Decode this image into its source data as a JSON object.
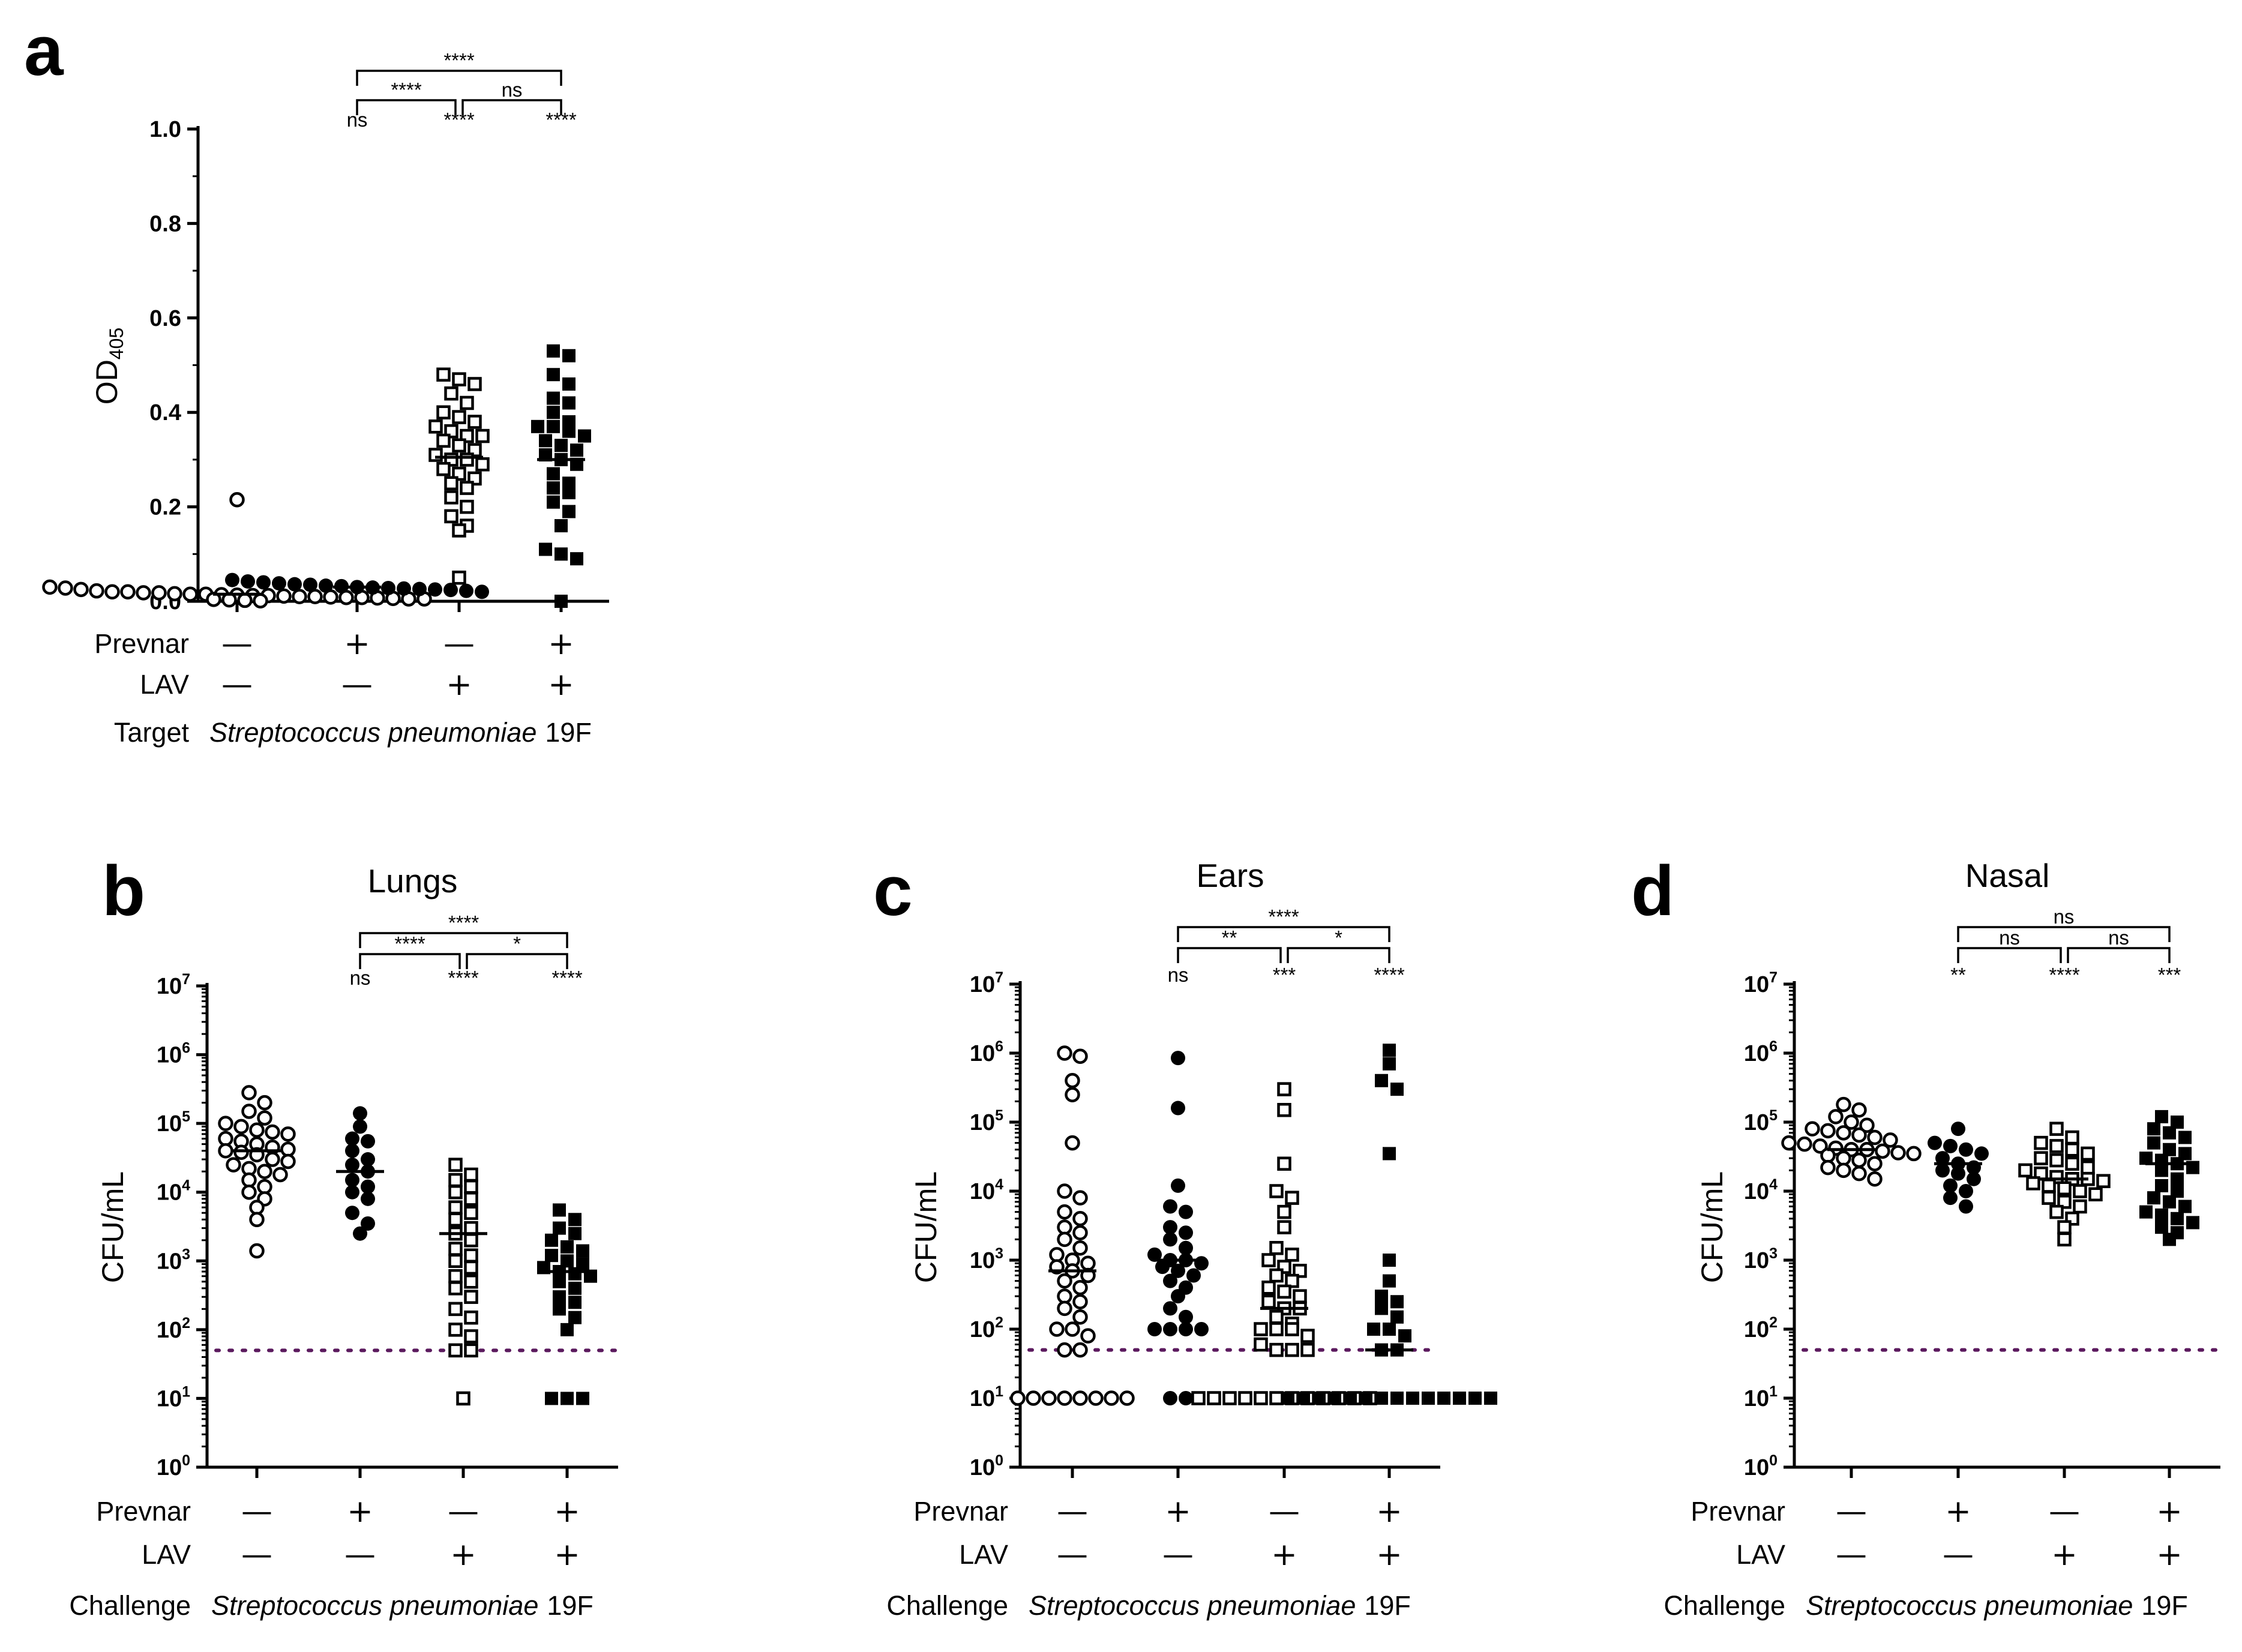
{
  "chart_data": [
    {
      "id": "a",
      "panel_label": "a",
      "type": "scatter",
      "title": "",
      "ylabel": "OD",
      "ylabel_sub": "405",
      "scale": "linear",
      "ylim": [
        0,
        1.0
      ],
      "yticks": [
        "0.0",
        "0.2",
        "0.4",
        "0.6",
        "0.8",
        "1.0"
      ],
      "row_labels": [
        "Prevnar",
        "LAV",
        "Target"
      ],
      "footer": {
        "label": "Target",
        "organism": "Streptococcus pneumoniae",
        "strain": "19F"
      },
      "groups": [
        {
          "prevnar": "—",
          "lav": "—",
          "marker": "open-circle",
          "median": 0.015,
          "values": [
            0.215,
            0.03,
            0.028,
            0.025,
            0.022,
            0.02,
            0.02,
            0.018,
            0.018,
            0.016,
            0.015,
            0.015,
            0.014,
            0.013,
            0.012,
            0.012,
            0.011,
            0.01,
            0.01,
            0.009,
            0.008,
            0.008,
            0.007,
            0.006,
            0.005,
            0.005,
            0.004,
            0.003,
            0.002,
            0.001
          ]
        },
        {
          "prevnar": "+",
          "lav": "—",
          "marker": "filled-circle",
          "median": 0.03,
          "values": [
            0.045,
            0.042,
            0.04,
            0.038,
            0.036,
            0.035,
            0.033,
            0.032,
            0.03,
            0.029,
            0.028,
            0.027,
            0.026,
            0.025,
            0.024,
            0.022,
            0.02
          ]
        },
        {
          "prevnar": "—",
          "lav": "+",
          "marker": "open-square",
          "median": 0.305,
          "values": [
            0.48,
            0.47,
            0.46,
            0.44,
            0.42,
            0.4,
            0.39,
            0.38,
            0.37,
            0.36,
            0.35,
            0.35,
            0.34,
            0.33,
            0.32,
            0.31,
            0.3,
            0.3,
            0.29,
            0.28,
            0.27,
            0.26,
            0.25,
            0.24,
            0.22,
            0.2,
            0.18,
            0.16,
            0.15,
            0.05
          ]
        },
        {
          "prevnar": "+",
          "lav": "+",
          "marker": "filled-square",
          "median": 0.3,
          "values": [
            0.53,
            0.52,
            0.48,
            0.46,
            0.43,
            0.42,
            0.4,
            0.38,
            0.37,
            0.37,
            0.36,
            0.35,
            0.34,
            0.33,
            0.32,
            0.31,
            0.3,
            0.29,
            0.27,
            0.25,
            0.24,
            0.23,
            0.21,
            0.19,
            0.16,
            0.11,
            0.1,
            0.09,
            0.0
          ]
        }
      ],
      "significance": {
        "vs_control": [
          "ns",
          "****",
          "****"
        ],
        "brackets": [
          {
            "from": 2,
            "to": 4,
            "label": "****",
            "level": 2
          },
          {
            "from": 2,
            "to": 3,
            "label": "****",
            "level": 1
          },
          {
            "from": 3,
            "to": 4,
            "label": "ns",
            "level": 1
          }
        ]
      }
    },
    {
      "id": "b",
      "panel_label": "b",
      "type": "scatter",
      "title": "Lungs",
      "ylabel": "CFU/mL",
      "scale": "log10",
      "ylim_exp": [
        0,
        7
      ],
      "ytick_base": "10",
      "ytick_exps": [
        "0",
        "1",
        "2",
        "3",
        "4",
        "5",
        "6",
        "7"
      ],
      "limit_of_detection": 50,
      "row_labels": [
        "Prevnar",
        "LAV",
        "Challenge"
      ],
      "footer": {
        "label": "Challenge",
        "organism": "Streptococcus pneumoniae",
        "strain": "19F"
      },
      "groups": [
        {
          "prevnar": "—",
          "lav": "—",
          "marker": "open-circle",
          "median": 40000,
          "values": [
            280000,
            200000,
            150000,
            120000,
            100000,
            90000,
            80000,
            75000,
            70000,
            60000,
            55000,
            50000,
            45000,
            42000,
            40000,
            38000,
            35000,
            30000,
            28000,
            25000,
            22000,
            20000,
            18000,
            15000,
            12000,
            10000,
            8000,
            6000,
            4000,
            1400
          ]
        },
        {
          "prevnar": "+",
          "lav": "—",
          "marker": "filled-circle",
          "median": 20000,
          "values": [
            140000,
            90000,
            60000,
            55000,
            40000,
            30000,
            25000,
            20000,
            15000,
            12000,
            10000,
            8000,
            5000,
            3500,
            2500
          ]
        },
        {
          "prevnar": "—",
          "lav": "+",
          "marker": "open-square",
          "median": 2500,
          "values": [
            25000,
            18000,
            15000,
            12000,
            10000,
            8000,
            6000,
            5000,
            4000,
            3000,
            2500,
            2000,
            1500,
            1200,
            1000,
            800,
            600,
            500,
            400,
            300,
            200,
            150,
            100,
            80,
            50,
            50,
            10
          ]
        },
        {
          "prevnar": "+",
          "lav": "+",
          "marker": "filled-square",
          "median": 700,
          "values": [
            5500,
            4000,
            3000,
            2500,
            2000,
            1600,
            1400,
            1200,
            1000,
            900,
            800,
            700,
            650,
            600,
            500,
            400,
            300,
            250,
            200,
            150,
            100,
            10,
            10,
            10
          ]
        }
      ],
      "significance": {
        "vs_control": [
          "ns",
          "****",
          "****"
        ],
        "brackets": [
          {
            "from": 2,
            "to": 4,
            "label": "****",
            "level": 2
          },
          {
            "from": 2,
            "to": 3,
            "label": "****",
            "level": 1
          },
          {
            "from": 3,
            "to": 4,
            "label": "*",
            "level": 1
          }
        ]
      }
    },
    {
      "id": "c",
      "panel_label": "c",
      "type": "scatter",
      "title": "Ears",
      "ylabel": "CFU/mL",
      "scale": "log10",
      "ylim_exp": [
        0,
        7
      ],
      "ytick_base": "10",
      "ytick_exps": [
        "0",
        "1",
        "2",
        "3",
        "4",
        "5",
        "6",
        "7"
      ],
      "limit_of_detection": 50,
      "row_labels": [
        "Prevnar",
        "LAV",
        "Challenge"
      ],
      "footer": {
        "label": "Challenge",
        "organism": "Streptococcus pneumoniae",
        "strain": "19F"
      },
      "groups": [
        {
          "prevnar": "—",
          "lav": "—",
          "marker": "open-circle",
          "median": 700,
          "values": [
            1000000,
            900000,
            400000,
            250000,
            50000,
            10000,
            8000,
            5000,
            4000,
            3000,
            2500,
            2000,
            1500,
            1200,
            1000,
            900,
            800,
            700,
            600,
            500,
            400,
            300,
            250,
            200,
            150,
            100,
            100,
            80,
            50,
            50,
            10,
            10,
            10,
            10,
            10,
            10,
            10,
            10
          ]
        },
        {
          "prevnar": "+",
          "lav": "—",
          "marker": "filled-circle",
          "median": 1000,
          "values": [
            850000,
            160000,
            12000,
            6000,
            5000,
            3000,
            2500,
            2000,
            1500,
            1200,
            1000,
            1000,
            900,
            800,
            700,
            600,
            500,
            400,
            300,
            200,
            150,
            100,
            100,
            100,
            100,
            10,
            10
          ]
        },
        {
          "prevnar": "—",
          "lav": "+",
          "marker": "open-square",
          "median": 200,
          "values": [
            300000,
            150000,
            25000,
            10000,
            8000,
            5000,
            3000,
            1500,
            1200,
            1000,
            800,
            700,
            600,
            500,
            400,
            350,
            300,
            250,
            200,
            200,
            150,
            120,
            100,
            100,
            100,
            80,
            60,
            50,
            50,
            50,
            10,
            10,
            10,
            10,
            10,
            10,
            10,
            10,
            10,
            10,
            10,
            10
          ]
        },
        {
          "prevnar": "+",
          "lav": "+",
          "marker": "filled-square",
          "median": 50,
          "values": [
            1100000,
            700000,
            400000,
            300000,
            35000,
            1000,
            500,
            300,
            250,
            200,
            150,
            100,
            100,
            80,
            50,
            50,
            10,
            10,
            10,
            10,
            10,
            10,
            10,
            10,
            10,
            10,
            10,
            10,
            10,
            10
          ]
        }
      ],
      "significance": {
        "vs_control": [
          "ns",
          "***",
          "****"
        ],
        "brackets": [
          {
            "from": 2,
            "to": 4,
            "label": "****",
            "level": 2
          },
          {
            "from": 2,
            "to": 3,
            "label": "**",
            "level": 1
          },
          {
            "from": 3,
            "to": 4,
            "label": "*",
            "level": 1
          }
        ]
      }
    },
    {
      "id": "d",
      "panel_label": "d",
      "type": "scatter",
      "title": "Nasal",
      "ylabel": "CFU/mL",
      "scale": "log10",
      "ylim_exp": [
        0,
        7
      ],
      "ytick_base": "10",
      "ytick_exps": [
        "0",
        "1",
        "2",
        "3",
        "4",
        "5",
        "6",
        "7"
      ],
      "limit_of_detection": 50,
      "row_labels": [
        "Prevnar",
        "LAV",
        "Challenge"
      ],
      "footer": {
        "label": "Challenge",
        "organism": "Streptococcus pneumoniae",
        "strain": "19F"
      },
      "groups": [
        {
          "prevnar": "—",
          "lav": "—",
          "marker": "open-circle",
          "median": 40000,
          "values": [
            180000,
            150000,
            120000,
            100000,
            90000,
            80000,
            75000,
            70000,
            65000,
            60000,
            55000,
            50000,
            48000,
            45000,
            42000,
            40000,
            40000,
            38000,
            36000,
            35000,
            33000,
            30000,
            28000,
            25000,
            22000,
            20000,
            18000,
            15000
          ]
        },
        {
          "prevnar": "+",
          "lav": "—",
          "marker": "filled-circle",
          "median": 25000,
          "values": [
            80000,
            50000,
            45000,
            40000,
            35000,
            30000,
            25000,
            22000,
            20000,
            18000,
            15000,
            12000,
            10000,
            8000,
            6000
          ]
        },
        {
          "prevnar": "—",
          "lav": "+",
          "marker": "open-square",
          "median": 15000,
          "values": [
            80000,
            60000,
            50000,
            45000,
            40000,
            35000,
            30000,
            28000,
            25000,
            22000,
            20000,
            18000,
            16000,
            15000,
            15000,
            14000,
            13000,
            12000,
            11000,
            10000,
            9000,
            8000,
            7000,
            6000,
            5000,
            4000,
            3000,
            2000
          ]
        },
        {
          "prevnar": "+",
          "lav": "+",
          "marker": "filled-square",
          "median": 25000,
          "values": [
            120000,
            100000,
            80000,
            70000,
            60000,
            50000,
            40000,
            35000,
            30000,
            28000,
            25000,
            22000,
            20000,
            15000,
            12000,
            10000,
            8000,
            7000,
            6000,
            5000,
            4500,
            4000,
            3500,
            3000,
            2500,
            2000
          ]
        }
      ],
      "significance": {
        "vs_control": [
          "**",
          "****",
          "***"
        ],
        "brackets": [
          {
            "from": 2,
            "to": 4,
            "label": "ns",
            "level": 2
          },
          {
            "from": 2,
            "to": 3,
            "label": "ns",
            "level": 1
          },
          {
            "from": 3,
            "to": 4,
            "label": "ns",
            "level": 1
          }
        ]
      }
    }
  ]
}
